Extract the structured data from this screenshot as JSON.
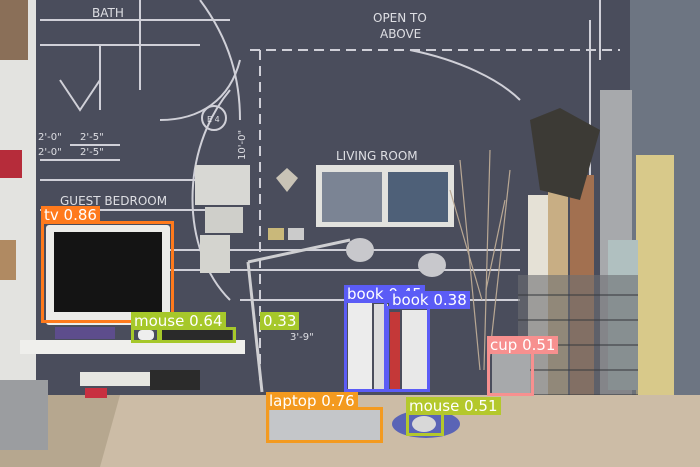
{
  "wall_text": {
    "bath": "BATH",
    "open_to_above_1": "OPEN TO",
    "open_to_above_2": "ABOVE",
    "living_room": "LIVING ROOM",
    "guest_bedroom": "GUEST BEDROOM",
    "dim_a": "2'-0\"",
    "dim_b": "2'-5\"",
    "dim_c": "2'-0\"",
    "dim_d": "2'-5\"",
    "dim_e": "10'-0\"",
    "dim_f": "3'-9\"",
    "tag": "E 4"
  },
  "detections": [
    {
      "label": "tv",
      "score": "0.86",
      "color": "#ff7a1c"
    },
    {
      "label": "mouse",
      "score": "0.64",
      "color": "#a6c82a"
    },
    {
      "label": "",
      "score": "0.33",
      "color": "#a6c82a"
    },
    {
      "label": "book",
      "score": "0.45",
      "color": "#5b5cf6"
    },
    {
      "label": "book",
      "score": "0.38",
      "color": "#5b5cf6"
    },
    {
      "label": "cup",
      "score": "0.51",
      "color": "#f7908f"
    },
    {
      "label": "laptop",
      "score": "0.76",
      "color": "#f39a1f"
    },
    {
      "label": "mouse",
      "score": "0.51",
      "color": "#b4c82c"
    }
  ]
}
